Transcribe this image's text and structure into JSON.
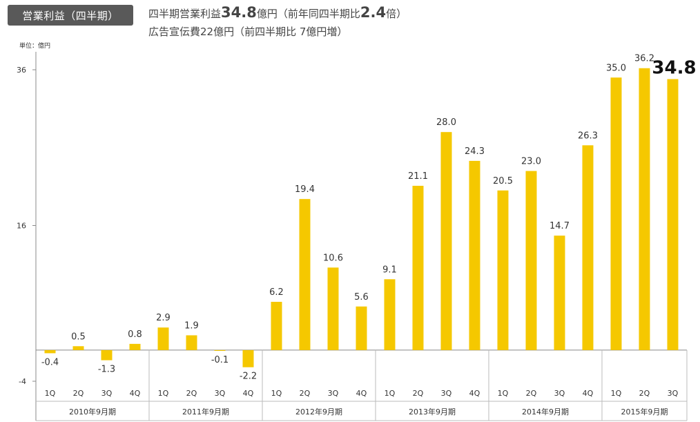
{
  "badge_title": "営業利益（四半期）",
  "headline": {
    "p1": "四半期営業利益",
    "v1": "34.8",
    "p2": "億円（前年同四半期比",
    "v2": "2.4",
    "p3": "倍）"
  },
  "subline": "広告宣伝費22億円（前四半期比 7億円増）",
  "colors": {
    "bar": "#F5C800",
    "axis": "#888888",
    "text": "#333333",
    "badge": "#595959"
  },
  "chart_data": {
    "type": "bar",
    "unit_label": "単位：億円",
    "ylim": [
      -4,
      38
    ],
    "yticks": [
      -4,
      16,
      36
    ],
    "categories": [
      "1Q",
      "2Q",
      "3Q",
      "4Q",
      "1Q",
      "2Q",
      "3Q",
      "4Q",
      "1Q",
      "2Q",
      "3Q",
      "4Q",
      "1Q",
      "2Q",
      "3Q",
      "4Q",
      "1Q",
      "2Q",
      "3Q",
      "4Q",
      "1Q",
      "2Q",
      "3Q"
    ],
    "groups": [
      {
        "label": "2010年9月期",
        "count": 4
      },
      {
        "label": "2011年9月期",
        "count": 4
      },
      {
        "label": "2012年9月期",
        "count": 4
      },
      {
        "label": "2013年9月期",
        "count": 4
      },
      {
        "label": "2014年9月期",
        "count": 4
      },
      {
        "label": "2015年9月期",
        "count": 3
      }
    ],
    "values": [
      -0.4,
      0.5,
      -1.3,
      0.8,
      2.9,
      1.9,
      -0.1,
      -2.2,
      6.2,
      19.4,
      10.6,
      5.6,
      9.1,
      21.1,
      28.0,
      24.3,
      20.5,
      23.0,
      14.7,
      26.3,
      35.0,
      36.2,
      34.8
    ],
    "labels": [
      "-0.4",
      "0.5",
      "-1.3",
      "0.8",
      "2.9",
      "1.9",
      "-0.1",
      "-2.2",
      "6.2",
      "19.4",
      "10.6",
      "5.6",
      "9.1",
      "21.1",
      "28.0",
      "24.3",
      "20.5",
      "23.0",
      "14.7",
      "26.3",
      "35.0",
      "36.2",
      "34.8"
    ],
    "highlight_index": 22
  }
}
